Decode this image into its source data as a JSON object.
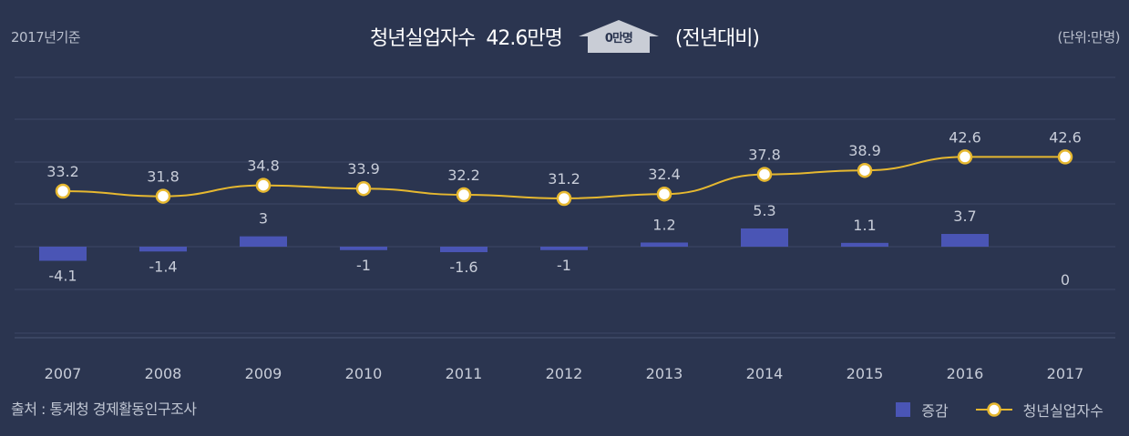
{
  "header": {
    "base_year": "2017년기준",
    "headline_label": "청년실업자수",
    "headline_value": "42.6만명",
    "change_value": "0만명",
    "change_note": "(전년대비)",
    "unit": "(단위:만명)"
  },
  "footer": {
    "source": "출처 : 통계청 경제활동인구조사"
  },
  "colors": {
    "background": "#2b3550",
    "bar": "#4a55b5",
    "line": "#e6b830",
    "marker_fill": "#ffffff",
    "grid": "#3d4866",
    "badge": "#c9cdd6"
  },
  "chart_data": {
    "type": "bar",
    "categories": [
      "2007",
      "2008",
      "2009",
      "2010",
      "2011",
      "2012",
      "2013",
      "2014",
      "2015",
      "2016",
      "2017"
    ],
    "series": [
      {
        "name": "증감",
        "type": "bar",
        "values": [
          -4.1,
          -1.4,
          3,
          -1,
          -1.6,
          -1,
          1.2,
          5.3,
          1.1,
          3.7,
          0
        ]
      },
      {
        "name": "청년실업자수",
        "type": "line",
        "values": [
          33.2,
          31.8,
          34.8,
          33.9,
          32.2,
          31.2,
          32.4,
          37.8,
          38.9,
          42.6,
          42.6
        ]
      }
    ],
    "bar_labels": [
      "-4.1",
      "-1.4",
      "3",
      "-1",
      "-1.6",
      "-1",
      "1.2",
      "5.3",
      "1.1",
      "3.7",
      "0"
    ],
    "line_labels": [
      "33.2",
      "31.8",
      "34.8",
      "33.9",
      "32.2",
      "31.2",
      "32.4",
      "37.8",
      "38.9",
      "42.6",
      "42.6"
    ],
    "legend_position": "bottom-right",
    "grid": true
  }
}
